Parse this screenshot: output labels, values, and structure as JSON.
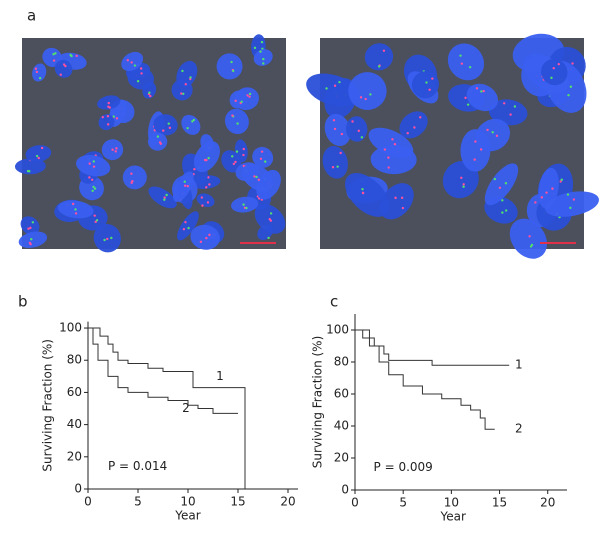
{
  "panel_labels": [
    "a",
    "b",
    "c"
  ],
  "chart_data": [
    {
      "type": "line",
      "xlabel": "Year",
      "ylabel": "Surviving Fraction (%)",
      "xlim": [
        0,
        21
      ],
      "ylim": [
        0,
        104
      ],
      "xticks": [
        0,
        5,
        10,
        15,
        20
      ],
      "yticks": [
        0,
        20,
        40,
        60,
        80,
        100
      ],
      "annotation": "P = 0.014",
      "series": [
        {
          "name": "1",
          "color": "#333333",
          "x": [
            0,
            1.2,
            2,
            2.5,
            3,
            4,
            6,
            7.5,
            10.5,
            15.7,
            15.7
          ],
          "values": [
            100,
            95,
            90,
            85,
            80,
            78,
            75,
            73,
            63,
            63,
            0
          ]
        },
        {
          "name": "2",
          "color": "#333333",
          "x": [
            0,
            0.5,
            1,
            2,
            3,
            4,
            6,
            8,
            10,
            11,
            12.5,
            15
          ],
          "values": [
            100,
            90,
            80,
            70,
            63,
            60,
            57,
            55,
            52,
            50,
            47,
            47
          ]
        }
      ]
    },
    {
      "type": "line",
      "xlabel": "Year",
      "ylabel": "Surviving Fraction (%)",
      "xlim": [
        0,
        22
      ],
      "ylim": [
        0,
        110
      ],
      "xticks": [
        0,
        5,
        10,
        15,
        20
      ],
      "yticks": [
        0,
        20,
        40,
        60,
        80,
        100
      ],
      "annotation": "P = 0.009",
      "series": [
        {
          "name": "1",
          "color": "#333333",
          "x": [
            0,
            1.5,
            2,
            3,
            3.5,
            8,
            16
          ],
          "values": [
            100,
            95,
            90,
            85,
            81,
            78,
            78
          ]
        },
        {
          "name": "2",
          "color": "#333333",
          "x": [
            0,
            0.8,
            1.5,
            2.5,
            3.5,
            5,
            7,
            9,
            11,
            12,
            13,
            13.5,
            14.5
          ],
          "values": [
            100,
            95,
            90,
            80,
            72,
            65,
            60,
            57,
            53,
            50,
            45,
            38,
            38
          ]
        }
      ]
    }
  ]
}
